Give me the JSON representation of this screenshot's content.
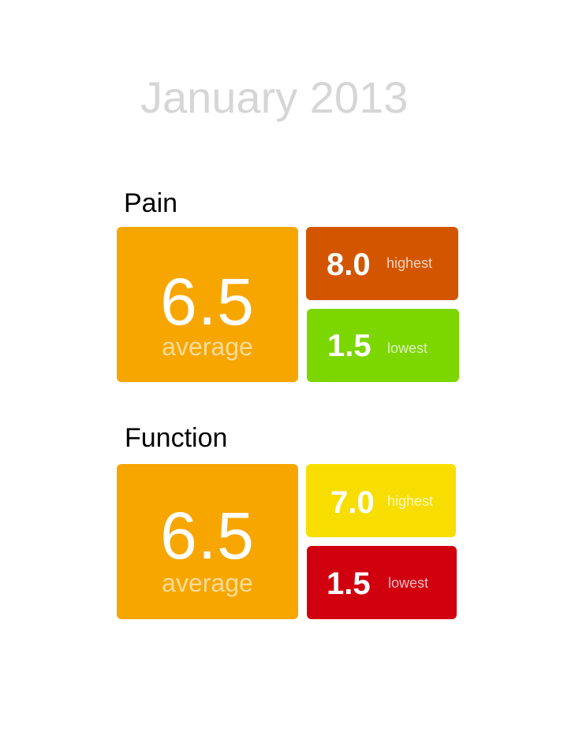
{
  "page": {
    "title": "January 2013"
  },
  "sections": [
    {
      "title": "Pain",
      "average": {
        "value": "6.5",
        "label": "average",
        "color": "#f7a600"
      },
      "highest": {
        "value": "8.0",
        "label": "highest",
        "color": "#d45500"
      },
      "lowest": {
        "value": "1.5",
        "label": "lowest",
        "color": "#7cd600"
      }
    },
    {
      "title": "Function",
      "average": {
        "value": "6.5",
        "label": "average",
        "color": "#f7a600"
      },
      "highest": {
        "value": "7.0",
        "label": "highest",
        "color": "#f7de00"
      },
      "lowest": {
        "value": "1.5",
        "label": "lowest",
        "color": "#d1000f"
      }
    }
  ]
}
